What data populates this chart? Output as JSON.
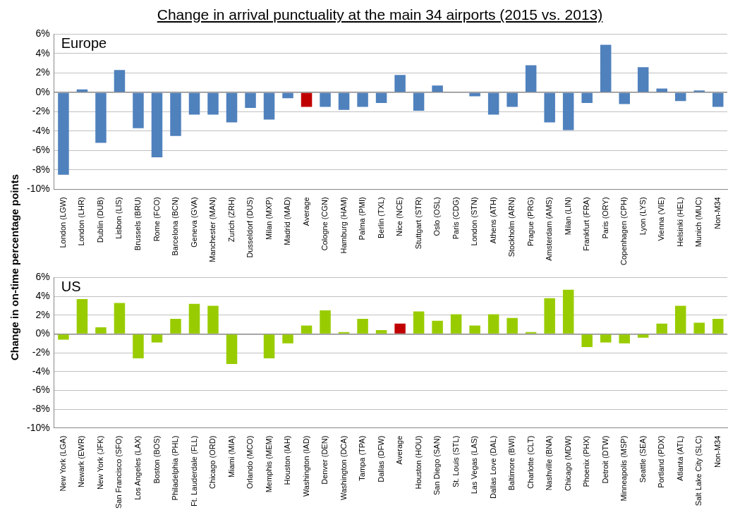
{
  "chart_data": [
    {
      "type": "bar",
      "title": "Change in arrival punctuality at the main 34 airports (2015 vs. 2013)",
      "ylabel": "Change in on-time percentage points",
      "annotations": [
        "Europe"
      ],
      "categories": [
        "London (LGW)",
        "London (LHR)",
        "Dublin (DUB)",
        "Lisbon (LIS)",
        "Brussels (BRU)",
        "Rome (FCO)",
        "Barcelona (BCN)",
        "Geneva (GVA)",
        "Manchester (MAN)",
        "Zurich (ZRH)",
        "Dusseldorf (DUS)",
        "Milan (MXP)",
        "Madrid (MAD)",
        "Average",
        "Cologne (CGN)",
        "Hamburg (HAM)",
        "Palma (PMI)",
        "Berlin (TXL)",
        "Nice (NCE)",
        "Stuttgart (STR)",
        "Oslo (OSL)",
        "Paris (CDG)",
        "London (STN)",
        "Athens (ATH)",
        "Stockholm (ARN)",
        "Prague (PRG)",
        "Amsterdam (AMS)",
        "Milan (LIN)",
        "Frankfurt (FRA)",
        "Paris (ORY)",
        "Copenhagen (CPH)",
        "Lyon (LYS)",
        "Vienna (VIE)",
        "Helsinki (HEL)",
        "Munich (MUC)",
        "Non-M34"
      ],
      "series": [
        {
          "values": [
            -8.5,
            0.3,
            -5.2,
            2.3,
            -3.7,
            -6.7,
            -4.5,
            -2.3,
            -2.3,
            -3.1,
            -1.6,
            -2.8,
            -0.6,
            -1.5,
            -1.5,
            -1.8,
            -1.5,
            -1.1,
            1.8,
            -1.9,
            0.7,
            0.0,
            -0.4,
            -2.3,
            -1.5,
            2.8,
            -3.1,
            -3.9,
            -1.1,
            4.9,
            -1.2,
            2.6,
            0.4,
            -0.9,
            0.2,
            -1.5
          ],
          "colors": [
            "#4f81bd",
            "#4f81bd",
            "#4f81bd",
            "#4f81bd",
            "#4f81bd",
            "#4f81bd",
            "#4f81bd",
            "#4f81bd",
            "#4f81bd",
            "#4f81bd",
            "#4f81bd",
            "#4f81bd",
            "#4f81bd",
            "#c00000",
            "#4f81bd",
            "#4f81bd",
            "#4f81bd",
            "#4f81bd",
            "#4f81bd",
            "#4f81bd",
            "#4f81bd",
            "#4f81bd",
            "#4f81bd",
            "#4f81bd",
            "#4f81bd",
            "#4f81bd",
            "#4f81bd",
            "#4f81bd",
            "#4f81bd",
            "#4f81bd",
            "#4f81bd",
            "#4f81bd",
            "#4f81bd",
            "#4f81bd",
            "#4f81bd",
            "#4f81bd"
          ]
        }
      ],
      "ylim": [
        -10,
        6
      ],
      "yticks": [
        {
          "value": -10,
          "label": "-10%"
        },
        {
          "value": -8,
          "label": "-8%"
        },
        {
          "value": -6,
          "label": "-6%"
        },
        {
          "value": -4,
          "label": "-4%"
        },
        {
          "value": -2,
          "label": "-2%"
        },
        {
          "value": 0,
          "label": "0%"
        },
        {
          "value": 2,
          "label": "2%"
        },
        {
          "value": 4,
          "label": "4%"
        },
        {
          "value": 6,
          "label": "6%"
        }
      ],
      "grid": "y",
      "legend": false
    },
    {
      "type": "bar",
      "annotations": [
        "US"
      ],
      "categories": [
        "New York (LGA)",
        "Newark (EWR)",
        "New York (JFK)",
        "San Francisco (SFO)",
        "Los Angeles (LAX)",
        "Boston (BOS)",
        "Philadelphia (PHL)",
        "Ft. Lauderdale (FLL)",
        "Chicago (ORD)",
        "Miami (MIA)",
        "Orlando (MCO)",
        "Memphis (MEM)",
        "Houston (IAH)",
        "Washington (IAD)",
        "Denver (DEN)",
        "Washington (DCA)",
        "Tampa (TPA)",
        "Dallas (DFW)",
        "Average",
        "Houston (HOU)",
        "San Diego (SAN)",
        "St. Louis (STL)",
        "Las Vegas (LAS)",
        "Dallas Love (DAL)",
        "Baltimore (BWI)",
        "Charlotte (CLT)",
        "Nashville (BNA)",
        "Chicago (MDW)",
        "Phoenix (PHX)",
        "Detroit (DTW)",
        "Minneapolis (MSP)",
        "Seattle (SEA)",
        "Portland (PDX)",
        "Atlanta (ATL)",
        "Salt Lake City (SLC)",
        "Non-M34"
      ],
      "series": [
        {
          "values": [
            -0.6,
            3.7,
            0.7,
            3.3,
            -2.6,
            -0.9,
            1.6,
            3.2,
            3.0,
            -3.2,
            0.0,
            -2.6,
            -1.0,
            0.9,
            2.5,
            0.2,
            1.6,
            0.4,
            1.1,
            2.4,
            1.4,
            2.1,
            0.9,
            2.1,
            1.7,
            0.2,
            3.8,
            4.7,
            -1.4,
            -0.9,
            -1.0,
            -0.4,
            1.1,
            3.0,
            1.2,
            1.6
          ],
          "colors": [
            "#99cc00",
            "#99cc00",
            "#99cc00",
            "#99cc00",
            "#99cc00",
            "#99cc00",
            "#99cc00",
            "#99cc00",
            "#99cc00",
            "#99cc00",
            "#99cc00",
            "#99cc00",
            "#99cc00",
            "#99cc00",
            "#99cc00",
            "#99cc00",
            "#99cc00",
            "#99cc00",
            "#c00000",
            "#99cc00",
            "#99cc00",
            "#99cc00",
            "#99cc00",
            "#99cc00",
            "#99cc00",
            "#99cc00",
            "#99cc00",
            "#99cc00",
            "#99cc00",
            "#99cc00",
            "#99cc00",
            "#99cc00",
            "#99cc00",
            "#99cc00",
            "#99cc00",
            "#99cc00"
          ]
        }
      ],
      "ylim": [
        -10,
        6
      ],
      "yticks": [
        {
          "value": -10,
          "label": "-10%"
        },
        {
          "value": -8,
          "label": "-8%"
        },
        {
          "value": -6,
          "label": "-6%"
        },
        {
          "value": -4,
          "label": "-4%"
        },
        {
          "value": -2,
          "label": "-2%"
        },
        {
          "value": 0,
          "label": "0%"
        },
        {
          "value": 2,
          "label": "2%"
        },
        {
          "value": 4,
          "label": "4%"
        },
        {
          "value": 6,
          "label": "6%"
        }
      ],
      "grid": "y",
      "legend": false
    }
  ]
}
